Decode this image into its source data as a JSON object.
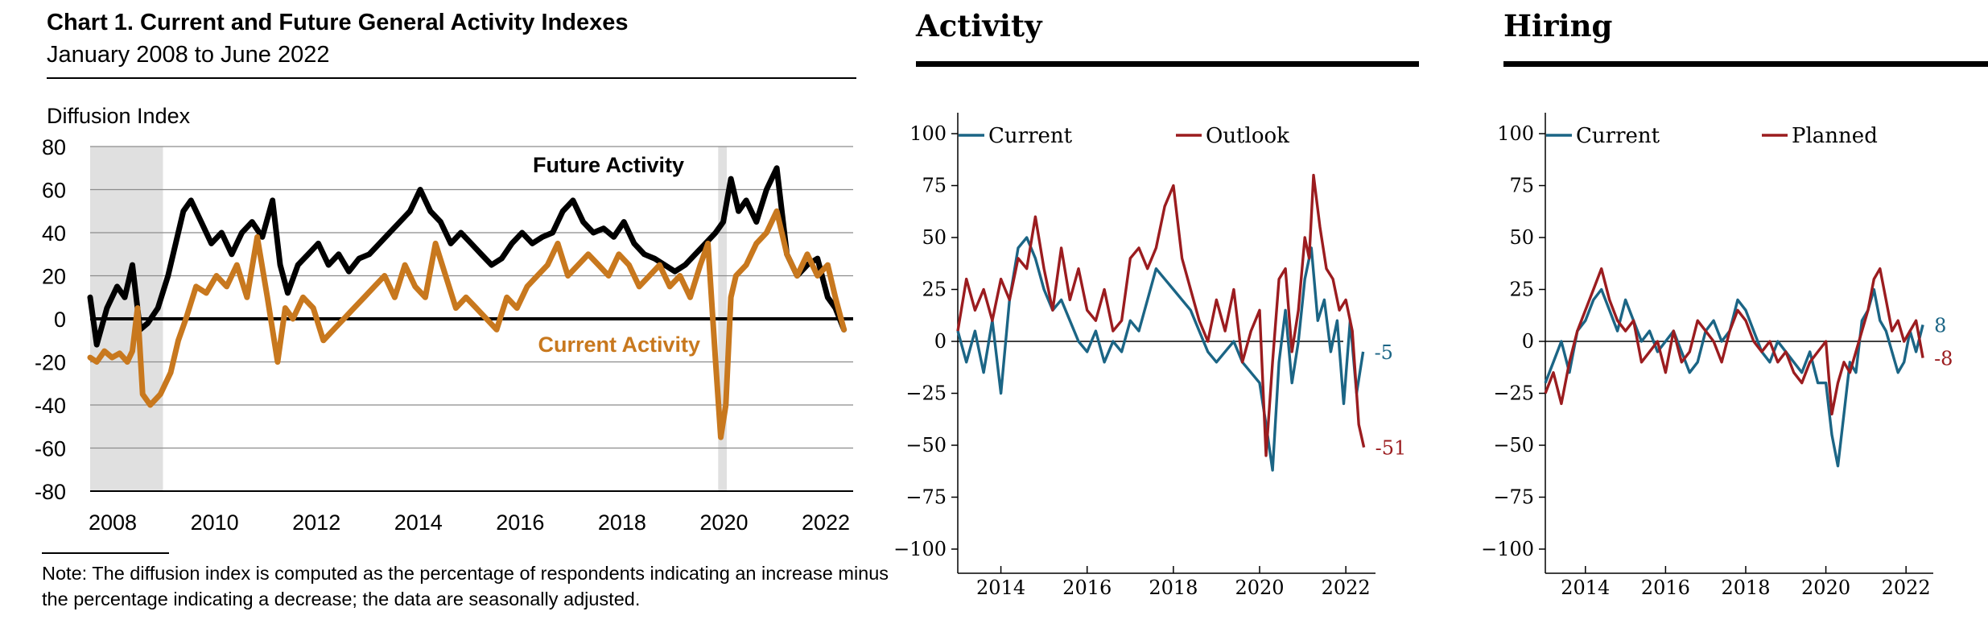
{
  "left_chart": {
    "title": "Chart 1. Current and Future General Activity Indexes",
    "subtitle": "January 2008 to June 2022",
    "note": "Note: The diffusion index is computed as the percentage of respondents indicating an increase minus the percentage indicating a decrease; the data are seasonally adjusted."
  },
  "activity": {
    "title": "Activity"
  },
  "hiring": {
    "title": "Hiring"
  },
  "chart_data": [
    {
      "type": "line",
      "title": "Chart 1. Current and Future General Activity Indexes",
      "subtitle": "January 2008 to June 2022",
      "ylabel": "Diffusion Index",
      "xlabel": "",
      "xlim": [
        2007.62,
        2022.6
      ],
      "ylim": [
        -80,
        80
      ],
      "yticks": [
        80,
        60,
        40,
        20,
        0,
        -20,
        -40,
        -60,
        -80
      ],
      "xticks": [
        "2008",
        "2010",
        "2012",
        "2014",
        "2016",
        "2018",
        "2020",
        "2022"
      ],
      "grid": true,
      "legend": "inline labels",
      "recessions": [
        [
          2007.62,
          2009.05
        ],
        [
          2019.95,
          2020.12
        ]
      ],
      "annotations": [
        "Future Activity",
        "Current Activity"
      ],
      "colors": {
        "Future Activity": "#000000",
        "Current Activity": "#c8781e",
        "recession": "#e0e0e0"
      },
      "series": [
        {
          "name": "Future Activity",
          "x": [
            2007.62,
            2007.75,
            2007.95,
            2008.15,
            2008.3,
            2008.45,
            2008.6,
            2008.75,
            2008.95,
            2009.15,
            2009.3,
            2009.45,
            2009.6,
            2009.8,
            2010.0,
            2010.2,
            2010.4,
            2010.6,
            2010.8,
            2011.0,
            2011.2,
            2011.35,
            2011.5,
            2011.7,
            2011.9,
            2012.1,
            2012.3,
            2012.5,
            2012.7,
            2012.9,
            2013.1,
            2013.3,
            2013.5,
            2013.7,
            2013.9,
            2014.1,
            2014.3,
            2014.5,
            2014.7,
            2014.9,
            2015.1,
            2015.3,
            2015.5,
            2015.7,
            2015.9,
            2016.1,
            2016.3,
            2016.5,
            2016.7,
            2016.9,
            2017.1,
            2017.3,
            2017.5,
            2017.7,
            2017.9,
            2018.1,
            2018.3,
            2018.5,
            2018.7,
            2018.9,
            2019.1,
            2019.3,
            2019.5,
            2019.7,
            2019.9,
            2020.05,
            2020.2,
            2020.35,
            2020.5,
            2020.7,
            2020.9,
            2021.1,
            2021.3,
            2021.5,
            2021.7,
            2021.9,
            2022.1,
            2022.25,
            2022.42
          ],
          "values": [
            10,
            -12,
            5,
            15,
            10,
            25,
            -5,
            -2,
            5,
            20,
            35,
            50,
            55,
            45,
            35,
            40,
            30,
            40,
            45,
            38,
            55,
            25,
            12,
            25,
            30,
            35,
            25,
            30,
            22,
            28,
            30,
            35,
            40,
            45,
            50,
            60,
            50,
            45,
            35,
            40,
            35,
            30,
            25,
            28,
            35,
            40,
            35,
            38,
            40,
            50,
            55,
            45,
            40,
            42,
            38,
            45,
            35,
            30,
            28,
            25,
            22,
            25,
            30,
            35,
            40,
            45,
            65,
            50,
            55,
            45,
            60,
            70,
            30,
            20,
            25,
            28,
            10,
            5,
            -5
          ]
        },
        {
          "name": "Current Activity",
          "x": [
            2007.62,
            2007.75,
            2007.9,
            2008.05,
            2008.2,
            2008.35,
            2008.45,
            2008.55,
            2008.65,
            2008.8,
            2009.0,
            2009.2,
            2009.35,
            2009.5,
            2009.7,
            2009.9,
            2010.1,
            2010.3,
            2010.5,
            2010.7,
            2010.9,
            2011.1,
            2011.3,
            2011.45,
            2011.6,
            2011.8,
            2012.0,
            2012.2,
            2012.4,
            2012.6,
            2012.8,
            2013.0,
            2013.2,
            2013.4,
            2013.6,
            2013.8,
            2014.0,
            2014.2,
            2014.4,
            2014.6,
            2014.8,
            2015.0,
            2015.2,
            2015.4,
            2015.6,
            2015.8,
            2016.0,
            2016.2,
            2016.4,
            2016.6,
            2016.8,
            2017.0,
            2017.2,
            2017.4,
            2017.6,
            2017.8,
            2018.0,
            2018.2,
            2018.4,
            2018.6,
            2018.8,
            2019.0,
            2019.2,
            2019.4,
            2019.6,
            2019.75,
            2019.9,
            2020.0,
            2020.1,
            2020.2,
            2020.3,
            2020.5,
            2020.7,
            2020.9,
            2021.1,
            2021.3,
            2021.5,
            2021.7,
            2021.9,
            2022.1,
            2022.25,
            2022.42
          ],
          "values": [
            -18,
            -20,
            -15,
            -18,
            -16,
            -20,
            -15,
            5,
            -35,
            -40,
            -35,
            -25,
            -10,
            0,
            15,
            12,
            20,
            15,
            25,
            10,
            38,
            10,
            -20,
            5,
            0,
            10,
            5,
            -10,
            -5,
            0,
            5,
            10,
            15,
            20,
            10,
            25,
            15,
            10,
            35,
            20,
            5,
            10,
            5,
            0,
            -5,
            10,
            5,
            15,
            20,
            25,
            35,
            20,
            25,
            30,
            25,
            20,
            30,
            25,
            15,
            20,
            25,
            15,
            20,
            10,
            25,
            35,
            -20,
            -55,
            -40,
            10,
            20,
            25,
            35,
            40,
            50,
            30,
            20,
            30,
            20,
            25,
            10,
            -5
          ]
        }
      ]
    },
    {
      "type": "line",
      "title": "Activity",
      "xlabel": "",
      "ylabel": "",
      "xlim": [
        2013.0,
        2022.8
      ],
      "ylim": [
        -100,
        100
      ],
      "yticks": [
        100,
        75,
        50,
        25,
        0,
        -25,
        -50,
        -75,
        -100
      ],
      "xticks": [
        "2014",
        "2016",
        "2018",
        "2020",
        "2022"
      ],
      "grid": false,
      "legend": "top-left",
      "colors": {
        "Current": "#1b6585",
        "Outlook": "#9b1c1f"
      },
      "end_labels": {
        "Current": "-5",
        "Outlook": "-51"
      },
      "series": [
        {
          "name": "Current",
          "x": [
            2013.0,
            2013.2,
            2013.4,
            2013.6,
            2013.8,
            2014.0,
            2014.2,
            2014.4,
            2014.6,
            2014.8,
            2015.0,
            2015.2,
            2015.4,
            2015.6,
            2015.8,
            2016.0,
            2016.2,
            2016.4,
            2016.6,
            2016.8,
            2017.0,
            2017.2,
            2017.4,
            2017.6,
            2017.8,
            2018.0,
            2018.2,
            2018.4,
            2018.6,
            2018.8,
            2019.0,
            2019.2,
            2019.4,
            2019.6,
            2019.8,
            2020.0,
            2020.15,
            2020.3,
            2020.45,
            2020.6,
            2020.75,
            2020.9,
            2021.05,
            2021.2,
            2021.35,
            2021.5,
            2021.65,
            2021.8,
            2021.95,
            2022.1,
            2022.25,
            2022.4
          ],
          "values": [
            5,
            -10,
            5,
            -15,
            10,
            -25,
            20,
            45,
            50,
            40,
            25,
            15,
            20,
            10,
            0,
            -5,
            5,
            -10,
            0,
            -5,
            10,
            5,
            20,
            35,
            30,
            25,
            20,
            15,
            5,
            -5,
            -10,
            -5,
            0,
            -10,
            -15,
            -20,
            -40,
            -62,
            -10,
            15,
            -20,
            0,
            30,
            45,
            10,
            20,
            -5,
            10,
            -30,
            10,
            -25,
            -5
          ]
        },
        {
          "name": "Outlook",
          "x": [
            2013.0,
            2013.2,
            2013.4,
            2013.6,
            2013.8,
            2014.0,
            2014.2,
            2014.4,
            2014.6,
            2014.8,
            2015.0,
            2015.2,
            2015.4,
            2015.6,
            2015.8,
            2016.0,
            2016.2,
            2016.4,
            2016.6,
            2016.8,
            2017.0,
            2017.2,
            2017.4,
            2017.6,
            2017.8,
            2018.0,
            2018.2,
            2018.4,
            2018.6,
            2018.8,
            2019.0,
            2019.2,
            2019.4,
            2019.6,
            2019.8,
            2020.0,
            2020.15,
            2020.3,
            2020.45,
            2020.6,
            2020.75,
            2020.9,
            2021.05,
            2021.15,
            2021.25,
            2021.4,
            2021.55,
            2021.7,
            2021.85,
            2022.0,
            2022.15,
            2022.3,
            2022.42
          ],
          "values": [
            5,
            30,
            15,
            25,
            10,
            30,
            20,
            40,
            35,
            60,
            35,
            15,
            45,
            20,
            35,
            15,
            10,
            25,
            5,
            10,
            40,
            45,
            35,
            45,
            65,
            75,
            40,
            25,
            10,
            0,
            20,
            5,
            25,
            -10,
            5,
            15,
            -55,
            -10,
            30,
            35,
            -5,
            15,
            50,
            40,
            80,
            55,
            35,
            30,
            15,
            20,
            5,
            -40,
            -51
          ]
        }
      ]
    },
    {
      "type": "line",
      "title": "Hiring",
      "xlabel": "",
      "ylabel": "",
      "xlim": [
        2013.0,
        2022.8
      ],
      "ylim": [
        -100,
        100
      ],
      "yticks": [
        100,
        75,
        50,
        25,
        0,
        -25,
        -50,
        -75,
        -100
      ],
      "xticks": [
        "2014",
        "2016",
        "2018",
        "2020",
        "2022"
      ],
      "grid": false,
      "legend": "top-left",
      "colors": {
        "Current": "#1b6585",
        "Planned": "#9b1c1f"
      },
      "end_labels": {
        "Current": "8",
        "Planned": "-8"
      },
      "series": [
        {
          "name": "Current",
          "x": [
            2013.0,
            2013.2,
            2013.4,
            2013.6,
            2013.8,
            2014.0,
            2014.2,
            2014.4,
            2014.6,
            2014.8,
            2015.0,
            2015.2,
            2015.4,
            2015.6,
            2015.8,
            2016.0,
            2016.2,
            2016.4,
            2016.6,
            2016.8,
            2017.0,
            2017.2,
            2017.4,
            2017.6,
            2017.8,
            2018.0,
            2018.2,
            2018.4,
            2018.6,
            2018.8,
            2019.0,
            2019.2,
            2019.4,
            2019.6,
            2019.8,
            2020.0,
            2020.15,
            2020.3,
            2020.45,
            2020.6,
            2020.75,
            2020.9,
            2021.05,
            2021.2,
            2021.35,
            2021.5,
            2021.65,
            2021.8,
            2021.95,
            2022.1,
            2022.25,
            2022.42
          ],
          "values": [
            -20,
            -10,
            0,
            -15,
            5,
            10,
            20,
            25,
            15,
            5,
            20,
            10,
            0,
            5,
            -5,
            0,
            5,
            -5,
            -15,
            -10,
            5,
            10,
            0,
            5,
            20,
            15,
            5,
            -5,
            -10,
            0,
            -5,
            -10,
            -15,
            -5,
            -20,
            -20,
            -45,
            -60,
            -35,
            -10,
            -15,
            10,
            15,
            25,
            10,
            5,
            -5,
            -15,
            -10,
            5,
            -5,
            8
          ]
        },
        {
          "name": "Planned",
          "x": [
            2013.0,
            2013.2,
            2013.4,
            2013.6,
            2013.8,
            2014.0,
            2014.2,
            2014.4,
            2014.6,
            2014.8,
            2015.0,
            2015.2,
            2015.4,
            2015.6,
            2015.8,
            2016.0,
            2016.2,
            2016.4,
            2016.6,
            2016.8,
            2017.0,
            2017.2,
            2017.4,
            2017.6,
            2017.8,
            2018.0,
            2018.2,
            2018.4,
            2018.6,
            2018.8,
            2019.0,
            2019.2,
            2019.4,
            2019.6,
            2019.8,
            2020.0,
            2020.15,
            2020.3,
            2020.45,
            2020.6,
            2020.75,
            2020.9,
            2021.05,
            2021.2,
            2021.35,
            2021.5,
            2021.65,
            2021.8,
            2021.95,
            2022.1,
            2022.25,
            2022.42
          ],
          "values": [
            -25,
            -15,
            -30,
            -10,
            5,
            15,
            25,
            35,
            20,
            10,
            5,
            10,
            -10,
            -5,
            0,
            -15,
            5,
            -10,
            -5,
            10,
            5,
            0,
            -10,
            5,
            15,
            10,
            0,
            -5,
            0,
            -10,
            -5,
            -15,
            -20,
            -10,
            -5,
            0,
            -35,
            -20,
            -10,
            -15,
            -5,
            5,
            15,
            30,
            35,
            20,
            5,
            10,
            0,
            5,
            10,
            -8
          ]
        }
      ]
    }
  ]
}
